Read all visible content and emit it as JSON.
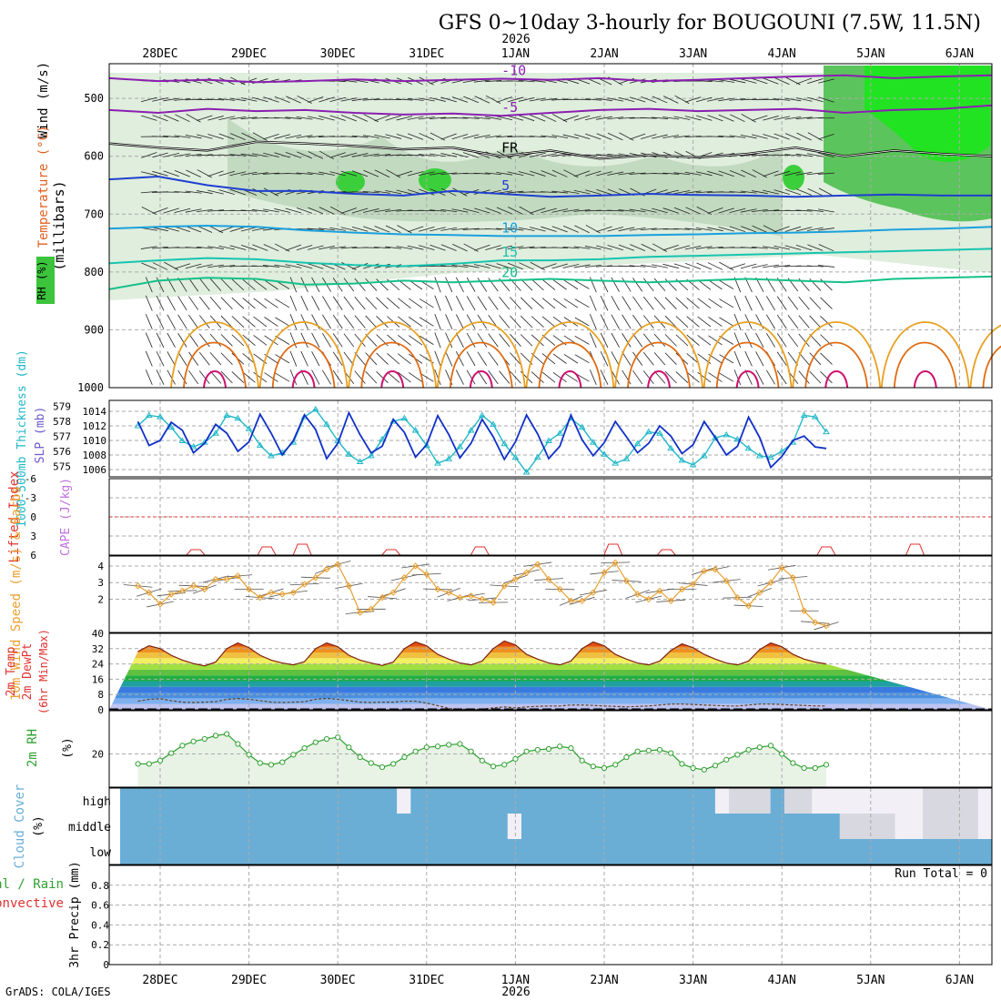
{
  "header": {
    "title": "GFS 0~10day 3-hourly for BOUGOUNI (7.5W, 11.5N)",
    "year": "2026",
    "footer": "GrADS: COLA/IGES"
  },
  "time_axis": {
    "dates": [
      "28DEC",
      "29DEC",
      "30DEC",
      "31DEC",
      "1JAN",
      "2JAN",
      "3JAN",
      "4JAN",
      "5JAN",
      "6JAN"
    ],
    "start_hour_offset": -6,
    "total_hours": 237,
    "year_under_index": 4
  },
  "colors": {
    "purple": "#8a1fb0",
    "blue": "#1f3fd0",
    "cyan": "#1aa0dd",
    "teal": "#17c4b0",
    "green": "#15c08a",
    "orange": "#e8a020",
    "darkorange": "#e06a10",
    "magenta": "#d01070",
    "slp": "#1030c8",
    "thick": "#20b8c8",
    "li": "#e03030",
    "wind": "#e8a030",
    "rh": "#30a030",
    "cloud": "#6aaed6",
    "barb": "#333333"
  },
  "chart_data": [
    {
      "type": "contour",
      "name": "upper_air",
      "ylabel": "(millibars)",
      "side_labels": [
        "Wind (m/s)",
        "Temperature (°C)",
        "RH (%)"
      ],
      "ylim": [
        1000,
        440
      ],
      "yticks": [
        500,
        600,
        700,
        800,
        900,
        1000
      ],
      "isotherms": [
        {
          "value": -10,
          "label": "-10",
          "color": "purple",
          "levels": [
            465,
            470,
            468,
            472,
            470,
            467,
            470,
            468,
            466,
            468,
            465,
            470,
            468,
            465,
            462,
            460,
            465,
            462,
            460
          ]
        },
        {
          "value": -5,
          "label": "-5",
          "color": "purple",
          "levels": [
            520,
            525,
            518,
            522,
            520,
            525,
            528,
            526,
            530,
            525,
            520,
            518,
            522,
            520,
            518,
            525,
            520,
            518,
            512
          ]
        },
        {
          "value": 0,
          "label": "FR",
          "color": "black",
          "levels": [
            578,
            585,
            590,
            575,
            578,
            582,
            588,
            585,
            600,
            590,
            604,
            598,
            602,
            596,
            585,
            600,
            590,
            596,
            600
          ]
        },
        {
          "value": 5,
          "label": "5",
          "color": "blue",
          "levels": [
            640,
            635,
            650,
            660,
            660,
            665,
            668,
            660,
            665,
            670,
            668,
            665,
            667,
            668,
            670,
            668,
            666,
            668,
            668
          ]
        },
        {
          "value": 10,
          "label": "10",
          "color": "cyan",
          "levels": [
            725,
            722,
            720,
            722,
            728,
            732,
            735,
            736,
            738,
            738,
            738,
            736,
            735,
            733,
            732,
            730,
            727,
            725,
            722
          ]
        },
        {
          "value": 15,
          "label": "15",
          "color": "teal",
          "levels": [
            785,
            780,
            776,
            778,
            784,
            788,
            790,
            786,
            780,
            780,
            778,
            774,
            772,
            770,
            768,
            766,
            764,
            762,
            760
          ]
        },
        {
          "value": 20,
          "label": "20",
          "color": "green",
          "levels": [
            830,
            815,
            810,
            812,
            822,
            820,
            815,
            818,
            815,
            812,
            815,
            818,
            815,
            812,
            815,
            818,
            812,
            810,
            808
          ]
        }
      ]
    },
    {
      "type": "line",
      "name": "slp_thickness",
      "ylabels": [
        "1000-500mb Thickness (dm)",
        "SLP (mb)"
      ],
      "left_ticks": [
        "575",
        "576",
        "577",
        "578",
        "579"
      ],
      "right_ticks": [
        "1006",
        "1008",
        "1010",
        "1012",
        "1014"
      ],
      "ylim_left": [
        574.3,
        579.4
      ],
      "ylim_right": [
        1005,
        1015.5
      ],
      "series": [
        {
          "name": "SLP",
          "color": "slp",
          "values": [
            1012.6,
            1009.3,
            1010.0,
            1012.5,
            1011.4,
            1008.3,
            1009.6,
            1012.2,
            1011.0,
            1008.5,
            1009.8,
            1013.6,
            1011.0,
            1008.0,
            1010.0,
            1013.5,
            1011.5,
            1007.5,
            1009.6,
            1013.8,
            1010.8,
            1008.3,
            1009.2,
            1012.9,
            1011.1,
            1007.7,
            1009.4,
            1013.4,
            1010.8,
            1007.6,
            1009.6,
            1012.9,
            1010.5,
            1007.4,
            1009.8,
            1013.5,
            1010.9,
            1007.5,
            1009.2,
            1013.5,
            1010.1,
            1007.9,
            1009.7,
            1012.6,
            1010.5,
            1008.3,
            1009.6,
            1012.0,
            1010.6,
            1008.2,
            1009.4,
            1012.6,
            1010.4,
            1008.0,
            1009.2,
            1013.2,
            1010.4,
            1006.3,
            1007.8,
            1010.0,
            1010.6,
            1009.1,
            1008.9
          ]
        },
        {
          "name": "Thickness",
          "color": "thick",
          "values": [
            577.7,
            578.4,
            578.3,
            577.6,
            576.7,
            576.3,
            576.6,
            577.2,
            578.4,
            578.2,
            577.5,
            576.4,
            575.7,
            575.9,
            576.6,
            578.3,
            578.8,
            577.8,
            576.7,
            575.8,
            575.3,
            575.7,
            576.8,
            578.0,
            578.2,
            577.4,
            576.4,
            575.2,
            575.5,
            576.3,
            577.4,
            578.4,
            577.8,
            576.5,
            575.6,
            574.6,
            575.6,
            576.7,
            577.2,
            578.2,
            577.6,
            576.6,
            575.8,
            575.2,
            575.5,
            576.5,
            577.3,
            577.2,
            576.2,
            575.4,
            575.1,
            575.7,
            576.9,
            577.1,
            576.8,
            576.2,
            575.7,
            575.6,
            576.0,
            576.6,
            578.4,
            578.3,
            577.3
          ]
        }
      ]
    },
    {
      "type": "line",
      "name": "lifted_index",
      "ylabels": [
        "Lifted Index",
        "CAPE (J/kg)"
      ],
      "yticks": [
        "-6",
        "-3",
        "0",
        "3",
        "6"
      ],
      "ylim": [
        -6,
        6
      ],
      "series": [
        {
          "name": "Lifted Index",
          "color": "li",
          "values": [
            5.7,
            5.9,
            6.5,
            6.5,
            6.5,
            6.5,
            6.5,
            6.5,
            6.5,
            6.5,
            6.5,
            6.5,
            6.5,
            6.5,
            6.5,
            6.5,
            6.5,
            6.5,
            6.5,
            6.5,
            6.5,
            6.5,
            6.5,
            6.5,
            6.5,
            6.5,
            6.5,
            6.5,
            6.5,
            6.5,
            6.5,
            6.5,
            6.5,
            6.5,
            6.5,
            6.5,
            6.5,
            6.5,
            6.5,
            6.5,
            6.5,
            6.5,
            6.5,
            6.5,
            6.5,
            6.5,
            6.5,
            6.5,
            6.5,
            6.5,
            6.5,
            6.5,
            6.5,
            6.5,
            6.5,
            6.5,
            6.5,
            6.5,
            6.5,
            6.5,
            6.5,
            6.5,
            6.5
          ]
        }
      ]
    },
    {
      "type": "line",
      "name": "wind_10m",
      "ylabels": [
        "10m Wind Speed (m/s) & Barbs"
      ],
      "yticks": [
        "2",
        "3",
        "4"
      ],
      "ylim": [
        0,
        4.6
      ],
      "series": [
        {
          "name": "10m Wind",
          "color": "wind",
          "values": [
            2.8,
            2.4,
            1.7,
            2.3,
            2.5,
            2.8,
            2.6,
            3.2,
            3.2,
            3.4,
            2.6,
            2.1,
            2.4,
            2.3,
            2.4,
            2.9,
            3.3,
            3.8,
            4.1,
            2.8,
            1.2,
            1.4,
            2.1,
            2.4,
            3.3,
            4.0,
            3.5,
            2.6,
            2.4,
            2.1,
            2.2,
            2.0,
            1.8,
            2.8,
            3.2,
            3.6,
            4.1,
            3.2,
            2.6,
            1.9,
            1.9,
            2.4,
            3.6,
            4.2,
            3.1,
            2.3,
            2.0,
            2.5,
            1.9,
            2.6,
            2.9,
            3.7,
            3.8,
            3.1,
            2.1,
            1.6,
            2.4,
            3.0,
            3.9,
            3.3,
            1.3,
            0.6,
            0.4
          ]
        }
      ]
    },
    {
      "type": "area",
      "name": "temp_2m",
      "ylabels": [
        "2m Temp",
        "2m DewPt",
        "(6hr Min/Max)"
      ],
      "yticks": [
        "0",
        "8",
        "16",
        "24",
        "32",
        "40"
      ],
      "ylim": [
        0,
        40
      ],
      "series": [
        {
          "name": "Temp",
          "values": [
            30.5,
            33.5,
            32.0,
            28.5,
            26.0,
            24.2,
            23.0,
            25.0,
            32.0,
            35.0,
            32.5,
            28.5,
            26.0,
            24.5,
            23.5,
            25.2,
            32.0,
            35.0,
            33.0,
            28.5,
            26.0,
            24.5,
            23.2,
            25.0,
            32.0,
            35.5,
            33.5,
            29.0,
            26.5,
            24.5,
            23.5,
            25.5,
            32.0,
            36.0,
            34.0,
            29.0,
            26.5,
            24.5,
            23.5,
            25.5,
            32.0,
            35.5,
            33.5,
            29.0,
            26.5,
            24.5,
            23.5,
            25.5,
            31.0,
            34.5,
            32.5,
            29.0,
            26.5,
            24.5,
            23.5,
            25.5,
            31.5,
            35.0,
            33.0,
            29.0,
            26.5,
            25.0,
            24.0
          ]
        },
        {
          "name": "DewPt",
          "values": [
            4.5,
            5.5,
            5.8,
            4.8,
            4.0,
            3.8,
            4.0,
            4.2,
            5.5,
            5.9,
            5.5,
            4.8,
            4.0,
            3.8,
            4.0,
            4.2,
            5.5,
            6.0,
            5.5,
            4.8,
            4.0,
            3.8,
            4.0,
            4.0,
            4.5,
            4.5,
            3.5,
            2.2,
            0.7,
            0.0,
            -0.2,
            0.3,
            1.0,
            1.5,
            1.0,
            1.5,
            1.8,
            2.0,
            2.0,
            2.5,
            2.5,
            2.3,
            2.0,
            1.8,
            1.5,
            1.8,
            2.0,
            2.5,
            3.0,
            3.0,
            2.8,
            2.5,
            2.3,
            2.0,
            2.0,
            2.5,
            3.0,
            3.0,
            2.8,
            2.5,
            2.3,
            2.0,
            2.0
          ]
        }
      ]
    },
    {
      "type": "line",
      "name": "rh_2m",
      "ylabels": [
        "2m RH",
        "(%)"
      ],
      "yticks": [
        "20"
      ],
      "ylim": [
        0,
        46
      ],
      "series": [
        {
          "name": "RH",
          "values": [
            14.0,
            14.0,
            16.0,
            20.5,
            25.0,
            27.5,
            29.0,
            31.0,
            32.0,
            26.0,
            19.5,
            14.5,
            13.5,
            15.0,
            19.5,
            23.5,
            27.0,
            29.0,
            30.0,
            24.0,
            18.0,
            14.5,
            12.0,
            14.0,
            18.0,
            21.5,
            24.0,
            24.5,
            25.5,
            26.0,
            21.5,
            16.0,
            12.5,
            13.5,
            17.0,
            21.5,
            22.5,
            23.0,
            24.5,
            23.5,
            16.0,
            12.5,
            11.5,
            13.5,
            18.0,
            21.5,
            22.0,
            22.5,
            20.5,
            14.0,
            11.5,
            10.5,
            13.0,
            16.5,
            19.5,
            22.5,
            24.0,
            25.0,
            20.0,
            14.5,
            11.5,
            11.5,
            13.5
          ]
        }
      ]
    },
    {
      "type": "heatmap",
      "name": "cloud_cover",
      "ylabels": [
        "Cloud Cover",
        "(%)"
      ],
      "rows": [
        "high",
        "middle",
        "low"
      ],
      "row_values": [
        [
          1.0,
          1.0,
          1.0,
          1.0,
          1.0,
          1.0,
          1.0,
          1.0,
          1.0,
          1.0,
          1.0,
          1.0,
          1.0,
          1.0,
          1.0,
          1.0,
          1.0,
          1.0,
          1.0,
          1.0,
          0.0,
          1.0,
          1.0,
          1.0,
          1.0,
          1.0,
          1.0,
          1.0,
          1.0,
          1.0,
          1.0,
          1.0,
          1.0,
          1.0,
          1.0,
          1.0,
          1.0,
          1.0,
          1.0,
          1.0,
          1.0,
          1.0,
          1.0,
          0.0,
          0.3,
          0.4,
          0.3,
          0.5,
          0.4,
          0.2,
          0.0,
          0.0,
          0.0,
          0.0,
          0.0,
          0.0,
          0.0,
          0.0,
          0.2,
          0.3,
          0.1,
          0.4,
          0.0
        ],
        [
          1.0,
          1.0,
          1.0,
          1.0,
          1.0,
          1.0,
          1.0,
          1.0,
          1.0,
          1.0,
          1.0,
          1.0,
          1.0,
          1.0,
          1.0,
          1.0,
          1.0,
          1.0,
          1.0,
          1.0,
          1.0,
          1.0,
          1.0,
          1.0,
          1.0,
          1.0,
          1.0,
          1.0,
          0.0,
          1.0,
          1.0,
          1.0,
          1.0,
          1.0,
          1.0,
          1.0,
          1.0,
          1.0,
          1.0,
          1.0,
          1.0,
          1.0,
          1.0,
          1.0,
          1.0,
          1.0,
          1.0,
          1.0,
          1.0,
          1.0,
          1.0,
          1.0,
          0.2,
          0.3,
          0.2,
          0.3,
          0.0,
          0.0,
          0.3,
          0.2,
          0.2,
          0.1,
          0.0
        ],
        [
          1.0,
          1.0,
          1.0,
          1.0,
          1.0,
          1.0,
          1.0,
          1.0,
          1.0,
          1.0,
          1.0,
          1.0,
          1.0,
          1.0,
          1.0,
          1.0,
          1.0,
          1.0,
          1.0,
          1.0,
          1.0,
          1.0,
          1.0,
          1.0,
          1.0,
          1.0,
          1.0,
          1.0,
          1.0,
          1.0,
          1.0,
          1.0,
          1.0,
          1.0,
          1.0,
          1.0,
          1.0,
          1.0,
          1.0,
          1.0,
          1.0,
          1.0,
          1.0,
          1.0,
          1.0,
          1.0,
          1.0,
          1.0,
          1.0,
          1.0,
          1.0,
          1.0,
          1.0,
          1.0,
          1.0,
          1.0,
          1.0,
          1.0,
          1.0,
          1.0,
          1.0,
          1.0,
          1.0
        ]
      ]
    },
    {
      "type": "bar",
      "name": "precip",
      "ylabels": [
        "3hr Precip (mm)",
        "Total / Rain",
        "Convective"
      ],
      "yticks": [
        "0",
        "0.2",
        "0.4",
        "0.6",
        "0.8"
      ],
      "ylim": [
        0,
        1
      ],
      "run_total": "Run Total = 0",
      "values": []
    }
  ]
}
